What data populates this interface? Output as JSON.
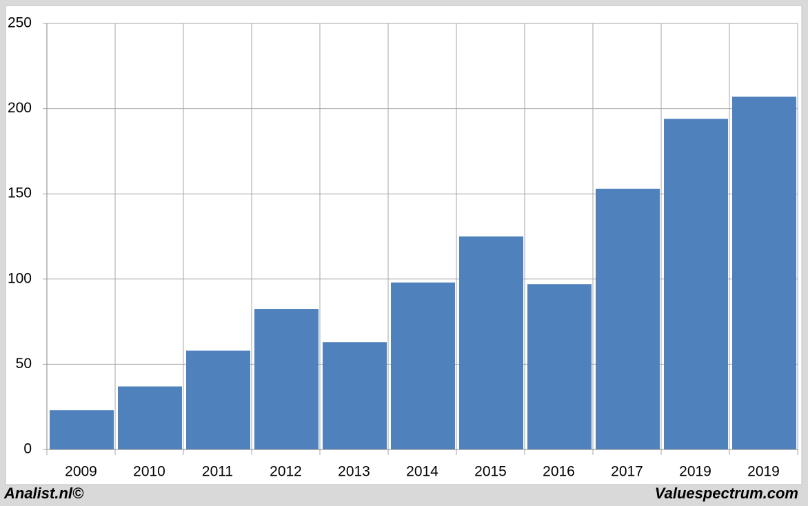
{
  "chart_data": {
    "type": "bar",
    "categories": [
      "2009",
      "2010",
      "2011",
      "2012",
      "2013",
      "2014",
      "2015",
      "2016",
      "2017",
      "2019",
      "2019"
    ],
    "values": [
      23,
      37,
      58,
      82.5,
      63,
      98,
      125,
      97,
      153,
      194,
      207
    ],
    "color": "#4f81bd",
    "ylim": [
      0,
      250
    ],
    "yticks": [
      0,
      50,
      100,
      150,
      200,
      250
    ],
    "grid": true,
    "annotations": [
      "Analist.nl©",
      "Valuespectrum.com"
    ]
  }
}
